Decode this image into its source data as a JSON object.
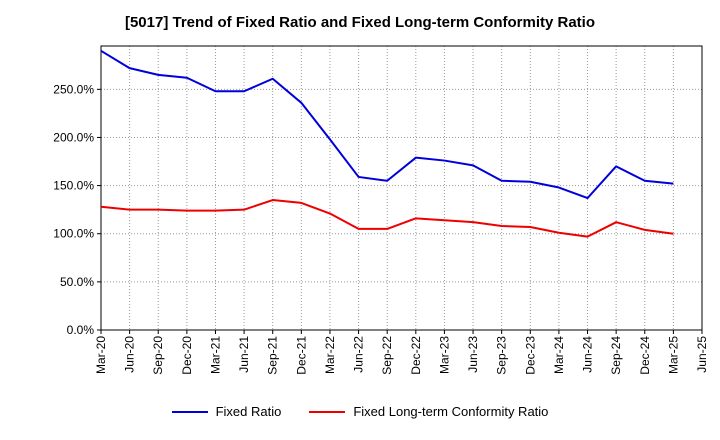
{
  "title": "[5017]  Trend of Fixed Ratio and Fixed Long-term Conformity Ratio",
  "chart_data": {
    "type": "line",
    "title": "[5017]  Trend of Fixed Ratio and Fixed Long-term Conformity Ratio",
    "xlabel": "",
    "ylabel": "",
    "ylim": [
      0,
      295
    ],
    "y_ticks": [
      0,
      50,
      100,
      150,
      200,
      250
    ],
    "y_tick_labels": [
      "0.0%",
      "50.0%",
      "100.0%",
      "150.0%",
      "200.0%",
      "250.0%"
    ],
    "grid": true,
    "legend_position": "bottom",
    "x": [
      "Mar-20",
      "Jun-20",
      "Sep-20",
      "Dec-20",
      "Mar-21",
      "Jun-21",
      "Sep-21",
      "Dec-21",
      "Mar-22",
      "Jun-22",
      "Sep-22",
      "Dec-22",
      "Mar-23",
      "Jun-23",
      "Sep-23",
      "Dec-23",
      "Mar-24",
      "Jun-24",
      "Sep-24",
      "Dec-24",
      "Mar-25",
      "Jun-25"
    ],
    "series": [
      {
        "name": "Fixed Ratio",
        "color": "#0000dd",
        "values": [
          290,
          272,
          265,
          262,
          248,
          248,
          261,
          236,
          198,
          159,
          155,
          179,
          176,
          171,
          155,
          154,
          148,
          137,
          170,
          155,
          152,
          null
        ]
      },
      {
        "name": "Fixed Long-term Conformity Ratio",
        "color": "#ee0000",
        "values": [
          128,
          125,
          125,
          124,
          124,
          125,
          135,
          132,
          121,
          105,
          105,
          116,
          114,
          112,
          108,
          107,
          101,
          97,
          112,
          104,
          100,
          null
        ]
      }
    ]
  }
}
